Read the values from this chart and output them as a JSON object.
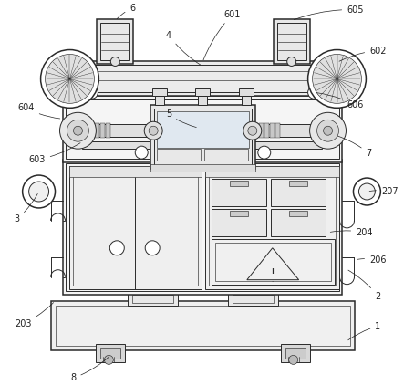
{
  "bg_color": "#ffffff",
  "line_color": "#2a2a2a",
  "fig_width": 4.43,
  "fig_height": 4.22,
  "label_color": "#222222",
  "lw_main": 1.1,
  "lw_med": 0.7,
  "lw_thin": 0.45
}
